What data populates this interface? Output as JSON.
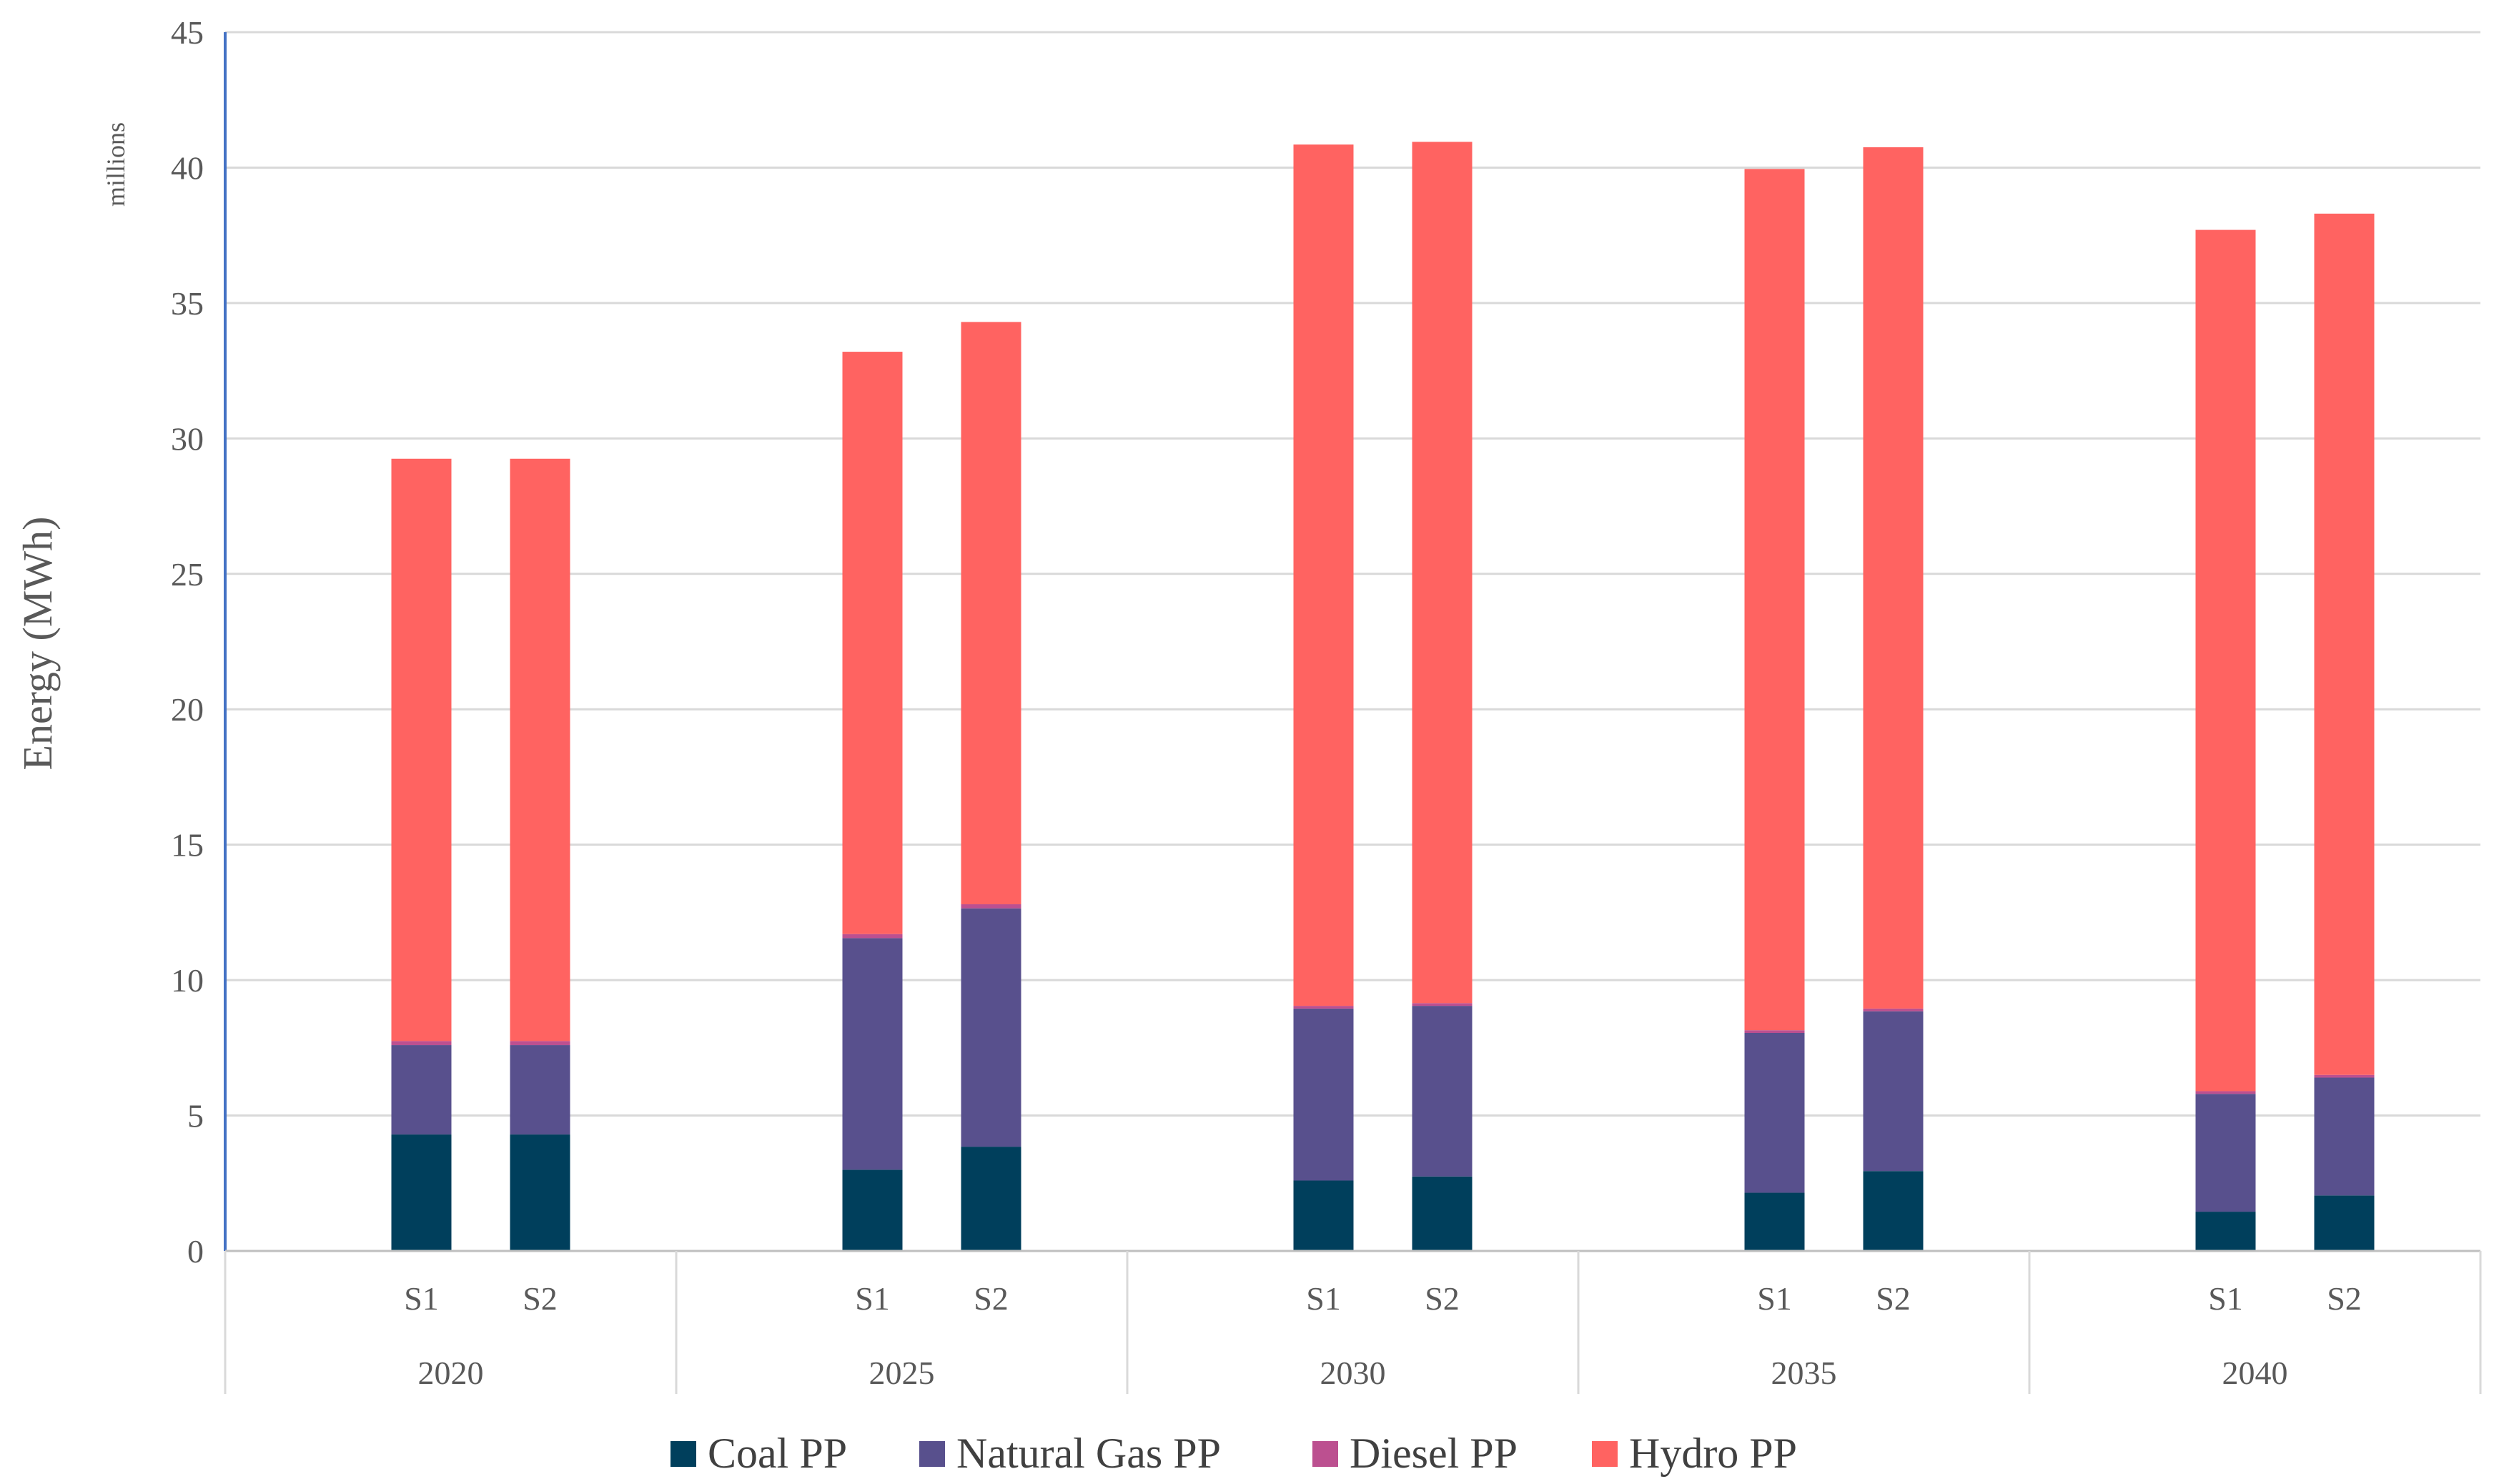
{
  "chart_data": {
    "type": "bar",
    "stacked": true,
    "units_label": "millions",
    "ylabel": "Energy (MWh)",
    "ylim": [
      0,
      45
    ],
    "ytick_step": 5,
    "yticks": [
      "0",
      "5",
      "10",
      "15",
      "20",
      "25",
      "30",
      "35",
      "40",
      "45"
    ],
    "years": [
      "2020",
      "2025",
      "2030",
      "2035",
      "2040"
    ],
    "scenarios": [
      "S1",
      "S2"
    ],
    "categories": [
      "2020 S1",
      "2020 S2",
      "2025 S1",
      "2025 S2",
      "2030 S1",
      "2030 S2",
      "2035 S1",
      "2035 S2",
      "2040 S1",
      "2040 S2"
    ],
    "series": [
      {
        "name": "Coal PP",
        "color": "#003f5c",
        "values": [
          4.3,
          4.3,
          3.0,
          3.85,
          2.6,
          2.75,
          2.15,
          2.95,
          1.45,
          2.05
        ]
      },
      {
        "name": "Natural Gas PP",
        "color": "#58508d",
        "values": [
          3.3,
          3.3,
          8.55,
          8.8,
          6.35,
          6.3,
          5.9,
          5.9,
          4.35,
          4.35
        ]
      },
      {
        "name": "Diesel PP",
        "color": "#bc5090",
        "values": [
          0.15,
          0.15,
          0.15,
          0.15,
          0.1,
          0.1,
          0.1,
          0.1,
          0.1,
          0.1
        ]
      },
      {
        "name": "Hydro PP",
        "color": "#ff6361",
        "values": [
          21.5,
          21.5,
          21.5,
          21.5,
          31.8,
          31.8,
          31.8,
          31.8,
          31.8,
          31.8
        ]
      }
    ],
    "legend_position": "bottom",
    "grid": true
  }
}
